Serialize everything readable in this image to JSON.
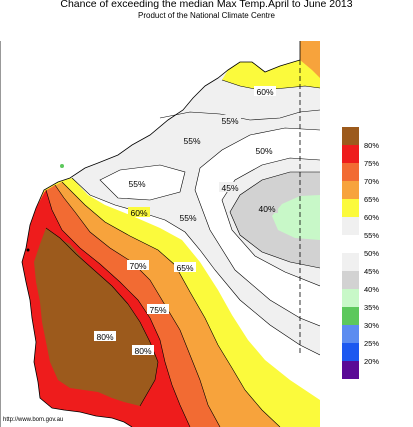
{
  "title": "Chance of exceeding the median Max Temp.April to June 2013",
  "subtitle": "Product of the National Climate Centre",
  "footer_url": "http://www.bom.gov.au",
  "contour_labels": [
    "60%",
    "55%",
    "55%",
    "50%",
    "55%",
    "45%",
    "60%",
    "55%",
    "40%",
    "70%",
    "65%",
    "75%",
    "80%",
    "80%"
  ],
  "legend": [
    {
      "label": "80%",
      "color": "#9c5a1c"
    },
    {
      "label": "75%",
      "color": "#ee1c1c"
    },
    {
      "label": "70%",
      "color": "#f26b33"
    },
    {
      "label": "65%",
      "color": "#f7a33c"
    },
    {
      "label": "60%",
      "color": "#fbfa3c"
    },
    {
      "label": "55%",
      "color": "#f0f0f0"
    },
    {
      "label": "50%",
      "color": "#ffffff"
    },
    {
      "label": "45%",
      "color": "#f0f0f0"
    },
    {
      "label": "40%",
      "color": "#d2d2d2"
    },
    {
      "label": "35%",
      "color": "#c8f8c8"
    },
    {
      "label": "30%",
      "color": "#5cc85c"
    },
    {
      "label": "25%",
      "color": "#5c8cf0"
    },
    {
      "label": "20%",
      "color": "#1c58f0"
    },
    {
      "label": "",
      "color": "#5a0a96"
    }
  ]
}
